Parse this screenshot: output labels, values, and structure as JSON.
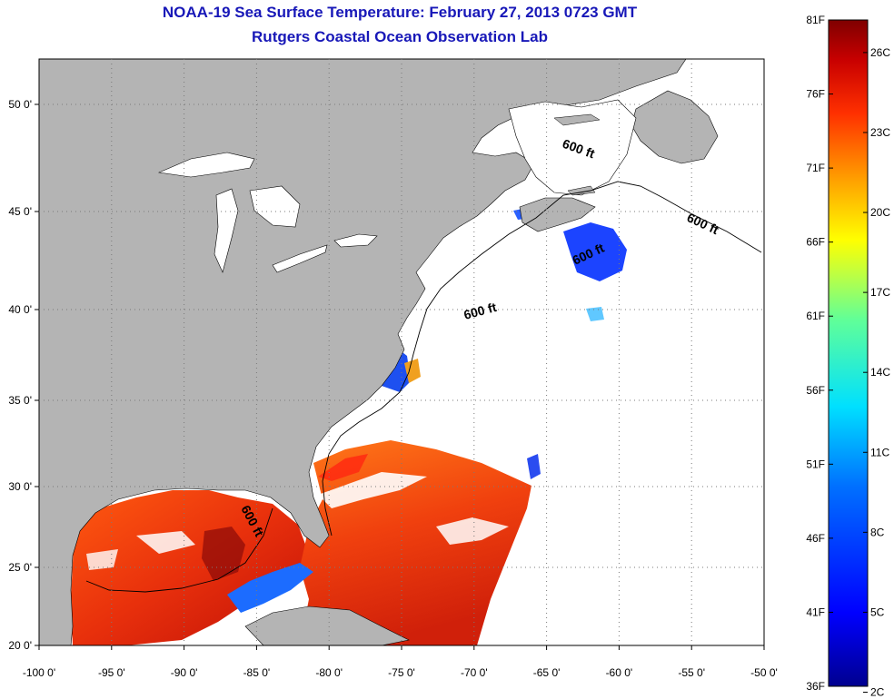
{
  "title": "NOAA-19 Sea Surface Temperature:  February 27, 2013 0723 GMT",
  "subtitle": "Rutgers Coastal Ocean Observation Lab",
  "map": {
    "lon_range": [
      -100,
      -50
    ],
    "lat_range": [
      20,
      52
    ],
    "lon_ticks": [
      "-100 0'",
      "-95 0'",
      "-90 0'",
      "-85 0'",
      "-80 0'",
      "-75 0'",
      "-70 0'",
      "-65 0'",
      "-60 0'",
      "-55 0'",
      "-50 0'"
    ],
    "lat_ticks": [
      "20 0'",
      "25 0'",
      "30 0'",
      "35 0'",
      "40 0'",
      "45 0'",
      "50 0'"
    ],
    "contour_labels": [
      "600 ft",
      "600 ft",
      "600 ft",
      "600 ft",
      "600 ft"
    ],
    "colors": {
      "land": "#b4b4b4",
      "no_data": "#ffffff",
      "gridline": "#7a7a7a"
    }
  },
  "colorbar": {
    "fahrenheit": [
      "81F",
      "76F",
      "71F",
      "66F",
      "61F",
      "56F",
      "51F",
      "46F",
      "41F",
      "36F"
    ],
    "celsius": [
      "26C",
      "23C",
      "20C",
      "17C",
      "14C",
      "11C",
      "8C",
      "5C",
      "2C"
    ],
    "colors": [
      "#7f0000",
      "#d40000",
      "#ff4a00",
      "#ffa800",
      "#f8f800",
      "#7cff7c",
      "#00e8ff",
      "#0090ff",
      "#0020ff",
      "#00008f"
    ]
  }
}
